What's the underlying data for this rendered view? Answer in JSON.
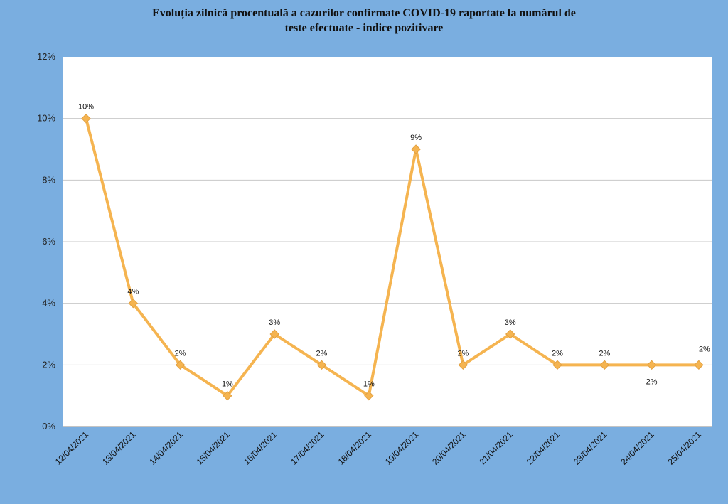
{
  "chart_data": {
    "type": "line",
    "title_line1": "Evoluția zilnică procentuală a cazurilor confirmate COVID-19 raportate la numărul de",
    "title_line2": "teste efectuate - indice pozitivare",
    "categories": [
      "12/04/2021",
      "13/04/2021",
      "14/04/2021",
      "15/04/2021",
      "16/04/2021",
      "17/04/2021",
      "18/04/2021",
      "19/04/2021",
      "20/04/2021",
      "21/04/2021",
      "22/04/2021",
      "23/04/2021",
      "24/04/2021",
      "25/04/2021"
    ],
    "series": [
      {
        "values": [
          10,
          4,
          2,
          1,
          3,
          2,
          1,
          9,
          2,
          3,
          2,
          2,
          2,
          2
        ],
        "labels": [
          "10%",
          "4%",
          "2%",
          "1%",
          "3%",
          "2%",
          "1%",
          "9%",
          "2%",
          "3%",
          "2%",
          "2%",
          "2%",
          "2%"
        ],
        "color": "#f5b450"
      }
    ],
    "ylim": [
      0,
      12
    ],
    "yticks": [
      "0%",
      "2%",
      "4%",
      "6%",
      "8%",
      "10%",
      "12%"
    ],
    "grid": true,
    "legend": "none",
    "plot_background": "#ffffff",
    "page_background": "#7aaee0"
  }
}
